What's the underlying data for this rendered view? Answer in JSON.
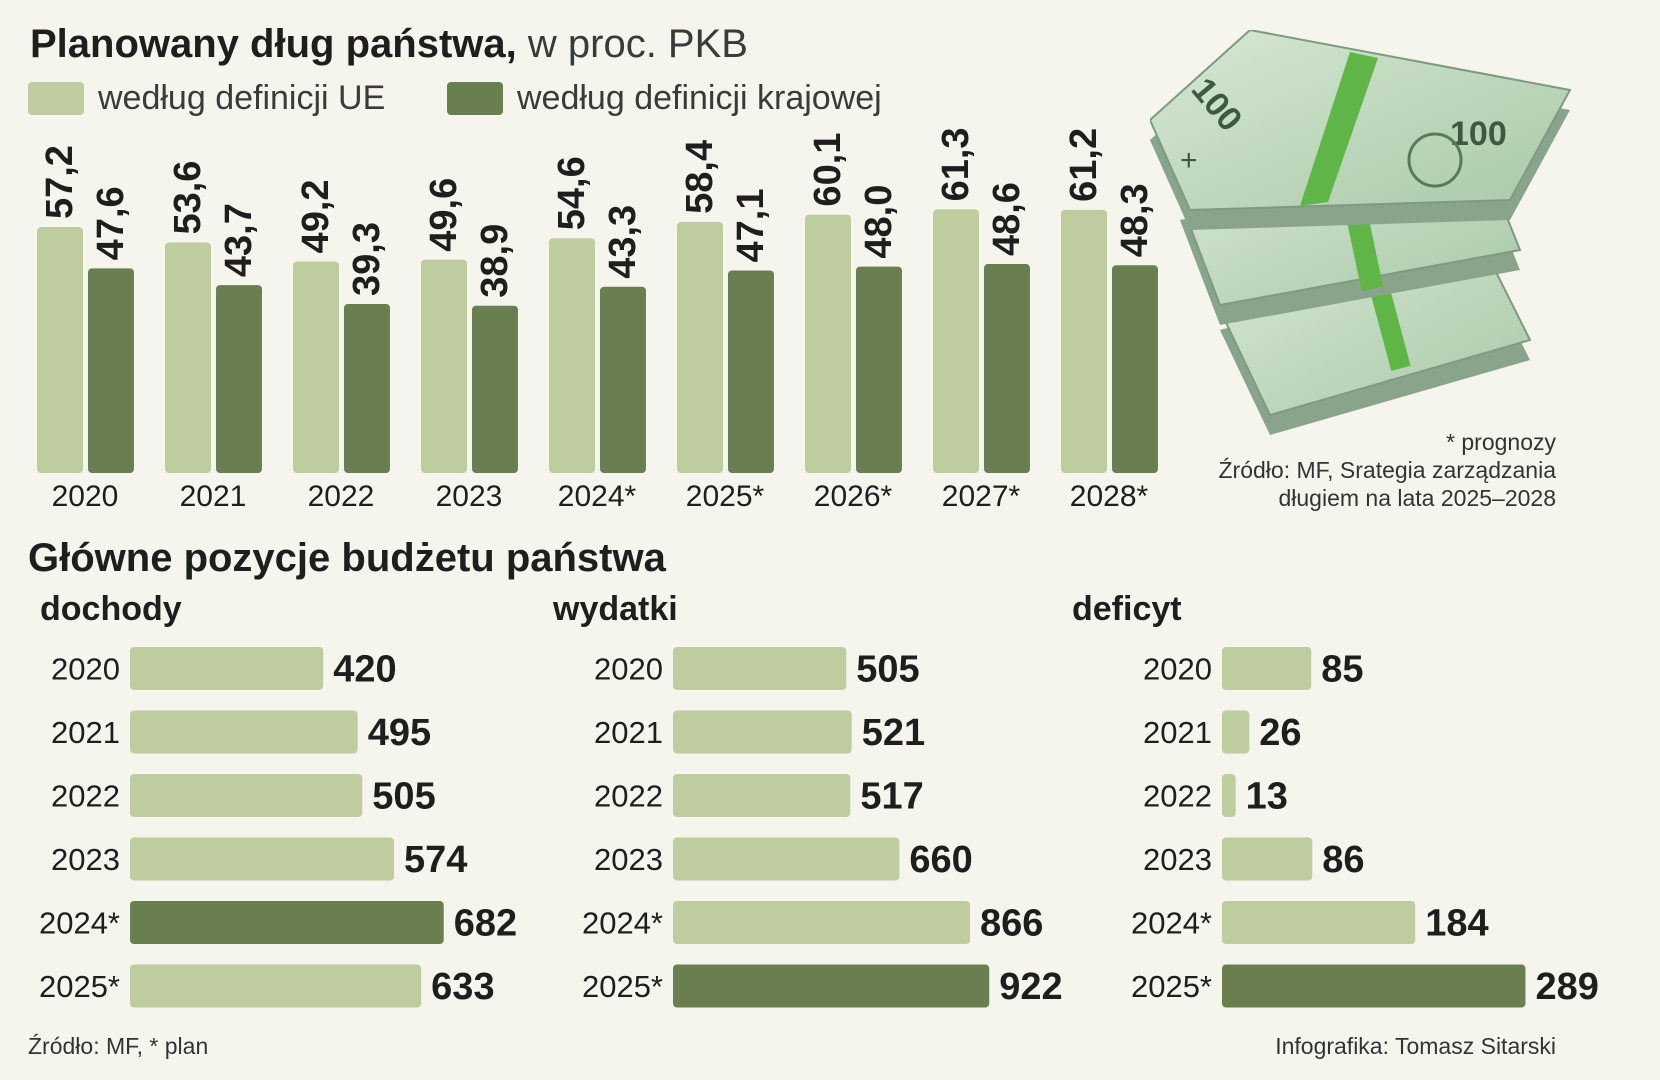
{
  "colors": {
    "eu": "#bfcca0",
    "national": "#697f50",
    "background": "#f5f5ee",
    "text": "#1e1e1e"
  },
  "debt_chart": {
    "title_bold": "Planowany dług państwa,",
    "title_light": "w proc. PKB",
    "legend": {
      "eu": "według definicji UE",
      "national": "według definicji krajowej"
    },
    "notes": [
      "* prognozy",
      "Źródło: MF, Srategia zarządzania",
      "długiem na lata 2025–2028"
    ]
  },
  "budget": {
    "title": "Główne pozycje budżetu państwa",
    "footer_left": "Źródło: MF, * plan",
    "footer_right": "Infografika: Tomasz Sitarski"
  },
  "illustration": {
    "icon": "banknote-stack-icon"
  },
  "chart_data": [
    {
      "type": "bar",
      "title": "Planowany dług państwa, w proc. PKB",
      "categories": [
        "2020",
        "2021",
        "2022",
        "2023",
        "2024*",
        "2025*",
        "2026*",
        "2027*",
        "2028*"
      ],
      "series": [
        {
          "name": "według definicji UE",
          "values": [
            57.2,
            53.6,
            49.2,
            49.6,
            54.6,
            58.4,
            60.1,
            61.3,
            61.2
          ],
          "labels": [
            "57,2",
            "53,6",
            "49,2",
            "49,6",
            "54,6",
            "58,4",
            "60,1",
            "61,3",
            "61,2"
          ]
        },
        {
          "name": "według definicji krajowej",
          "values": [
            47.6,
            43.7,
            39.3,
            38.9,
            43.3,
            47.1,
            48.0,
            48.6,
            48.3
          ],
          "labels": [
            "47,6",
            "43,7",
            "39,3",
            "38,9",
            "43,3",
            "47,1",
            "48,0",
            "48,6",
            "48,3"
          ]
        }
      ],
      "ylim": [
        0,
        63
      ],
      "grid": false,
      "legend": "top-left"
    },
    {
      "type": "bar",
      "orientation": "horizontal",
      "title": "dochody",
      "categories": [
        "2020",
        "2021",
        "2022",
        "2023",
        "2024*",
        "2025*"
      ],
      "values": [
        420,
        495,
        505,
        574,
        682,
        633
      ],
      "highlight_index": 4
    },
    {
      "type": "bar",
      "orientation": "horizontal",
      "title": "wydatki",
      "categories": [
        "2020",
        "2021",
        "2022",
        "2023",
        "2024*",
        "2025*"
      ],
      "values": [
        505,
        521,
        517,
        660,
        866,
        922
      ],
      "highlight_index": 5
    },
    {
      "type": "bar",
      "orientation": "horizontal",
      "title": "deficyt",
      "categories": [
        "2020",
        "2021",
        "2022",
        "2023",
        "2024*",
        "2025*"
      ],
      "values": [
        85,
        26,
        13,
        86,
        184,
        289
      ],
      "highlight_index": 5
    }
  ]
}
